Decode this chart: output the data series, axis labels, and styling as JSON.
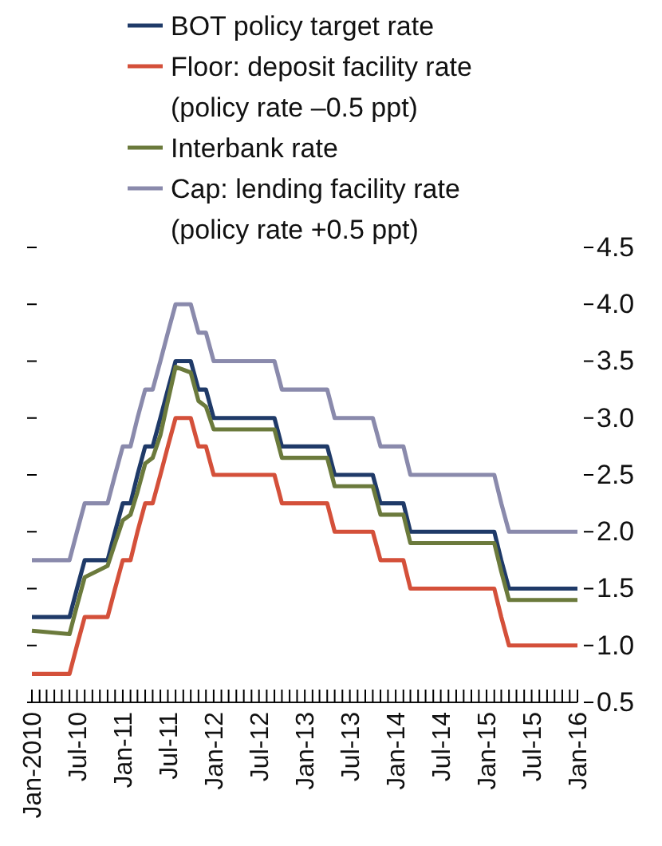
{
  "chart_data": {
    "type": "line",
    "x": [
      "2010-01",
      "2010-06",
      "2010-07",
      "2010-08",
      "2010-11",
      "2010-12",
      "2011-01",
      "2011-02",
      "2011-03",
      "2011-04",
      "2011-05",
      "2011-06",
      "2011-07",
      "2011-08",
      "2011-10",
      "2011-11",
      "2011-12",
      "2012-01",
      "2012-09",
      "2012-10",
      "2013-04",
      "2013-05",
      "2013-10",
      "2013-11",
      "2014-02",
      "2014-03",
      "2015-02",
      "2015-03",
      "2015-04",
      "2016-01"
    ],
    "series": [
      {
        "name": "BOT policy target rate",
        "color": "#1f3a68",
        "values": [
          1.25,
          1.25,
          1.5,
          1.75,
          1.75,
          2.0,
          2.25,
          2.25,
          2.5,
          2.75,
          2.75,
          3.0,
          3.25,
          3.5,
          3.5,
          3.25,
          3.25,
          3.0,
          3.0,
          2.75,
          2.75,
          2.5,
          2.5,
          2.25,
          2.25,
          2.0,
          2.0,
          1.75,
          1.5,
          1.5
        ]
      },
      {
        "name": "Floor: deposit facility rate\n(policy rate –0.5 ppt)",
        "color": "#d4503a",
        "values": [
          0.75,
          0.75,
          1.0,
          1.25,
          1.25,
          1.5,
          1.75,
          1.75,
          2.0,
          2.25,
          2.25,
          2.5,
          2.75,
          3.0,
          3.0,
          2.75,
          2.75,
          2.5,
          2.5,
          2.25,
          2.25,
          2.0,
          2.0,
          1.75,
          1.75,
          1.5,
          1.5,
          1.25,
          1.0,
          1.0
        ]
      },
      {
        "name": "Interbank rate",
        "color": "#6b7a3c",
        "values": [
          1.13,
          1.1,
          1.35,
          1.6,
          1.7,
          1.9,
          2.1,
          2.15,
          2.35,
          2.6,
          2.65,
          2.85,
          3.15,
          3.45,
          3.4,
          3.15,
          3.1,
          2.9,
          2.9,
          2.65,
          2.65,
          2.4,
          2.4,
          2.15,
          2.15,
          1.9,
          1.9,
          1.65,
          1.4,
          1.4
        ]
      },
      {
        "name": "Cap: lending facility rate\n(policy rate +0.5 ppt)",
        "color": "#8a8aac",
        "values": [
          1.75,
          1.75,
          2.0,
          2.25,
          2.25,
          2.5,
          2.75,
          2.75,
          3.0,
          3.25,
          3.25,
          3.5,
          3.75,
          4.0,
          4.0,
          3.75,
          3.75,
          3.5,
          3.5,
          3.25,
          3.25,
          3.0,
          3.0,
          2.75,
          2.75,
          2.5,
          2.5,
          2.25,
          2.0,
          2.0
        ]
      }
    ],
    "xlim": [
      "2010-01",
      "2016-01"
    ],
    "xticks": [
      {
        "value": "2010-01",
        "label": "Jan-2010"
      },
      {
        "value": "2010-02",
        "label": null
      },
      {
        "value": "2010-03",
        "label": null
      },
      {
        "value": "2010-04",
        "label": null
      },
      {
        "value": "2010-05",
        "label": null
      },
      {
        "value": "2010-06",
        "label": null
      },
      {
        "value": "2010-07",
        "label": "Jul-10"
      },
      {
        "value": "2010-08",
        "label": null
      },
      {
        "value": "2010-09",
        "label": null
      },
      {
        "value": "2010-10",
        "label": null
      },
      {
        "value": "2010-11",
        "label": null
      },
      {
        "value": "2010-12",
        "label": null
      },
      {
        "value": "2011-01",
        "label": "Jan-11"
      },
      {
        "value": "2011-02",
        "label": null
      },
      {
        "value": "2011-03",
        "label": null
      },
      {
        "value": "2011-04",
        "label": null
      },
      {
        "value": "2011-05",
        "label": null
      },
      {
        "value": "2011-06",
        "label": null
      },
      {
        "value": "2011-07",
        "label": "Jul-11"
      },
      {
        "value": "2011-08",
        "label": null
      },
      {
        "value": "2011-09",
        "label": null
      },
      {
        "value": "2011-10",
        "label": null
      },
      {
        "value": "2011-11",
        "label": null
      },
      {
        "value": "2011-12",
        "label": null
      },
      {
        "value": "2012-01",
        "label": "Jan-12"
      },
      {
        "value": "2012-02",
        "label": null
      },
      {
        "value": "2012-03",
        "label": null
      },
      {
        "value": "2012-04",
        "label": null
      },
      {
        "value": "2012-05",
        "label": null
      },
      {
        "value": "2012-06",
        "label": null
      },
      {
        "value": "2012-07",
        "label": "Jul-12"
      },
      {
        "value": "2012-08",
        "label": null
      },
      {
        "value": "2012-09",
        "label": null
      },
      {
        "value": "2012-10",
        "label": null
      },
      {
        "value": "2012-11",
        "label": null
      },
      {
        "value": "2012-12",
        "label": null
      },
      {
        "value": "2013-01",
        "label": "Jan-13"
      },
      {
        "value": "2013-02",
        "label": null
      },
      {
        "value": "2013-03",
        "label": null
      },
      {
        "value": "2013-04",
        "label": null
      },
      {
        "value": "2013-05",
        "label": null
      },
      {
        "value": "2013-06",
        "label": null
      },
      {
        "value": "2013-07",
        "label": "Jul-13"
      },
      {
        "value": "2013-08",
        "label": null
      },
      {
        "value": "2013-09",
        "label": null
      },
      {
        "value": "2013-10",
        "label": null
      },
      {
        "value": "2013-11",
        "label": null
      },
      {
        "value": "2013-12",
        "label": null
      },
      {
        "value": "2014-01",
        "label": "Jan-14"
      },
      {
        "value": "2014-02",
        "label": null
      },
      {
        "value": "2014-03",
        "label": null
      },
      {
        "value": "2014-04",
        "label": null
      },
      {
        "value": "2014-05",
        "label": null
      },
      {
        "value": "2014-06",
        "label": null
      },
      {
        "value": "2014-07",
        "label": "Jul-14"
      },
      {
        "value": "2014-08",
        "label": null
      },
      {
        "value": "2014-09",
        "label": null
      },
      {
        "value": "2014-10",
        "label": null
      },
      {
        "value": "2014-11",
        "label": null
      },
      {
        "value": "2014-12",
        "label": null
      },
      {
        "value": "2015-01",
        "label": "Jan-15"
      },
      {
        "value": "2015-02",
        "label": null
      },
      {
        "value": "2015-03",
        "label": null
      },
      {
        "value": "2015-04",
        "label": null
      },
      {
        "value": "2015-05",
        "label": null
      },
      {
        "value": "2015-06",
        "label": null
      },
      {
        "value": "2015-07",
        "label": "Jul-15"
      },
      {
        "value": "2015-08",
        "label": null
      },
      {
        "value": "2015-09",
        "label": null
      },
      {
        "value": "2015-10",
        "label": null
      },
      {
        "value": "2015-11",
        "label": null
      },
      {
        "value": "2015-12",
        "label": null
      },
      {
        "value": "2016-01",
        "label": "Jan-16"
      }
    ],
    "ylim": [
      0.5,
      4.5
    ],
    "yticks": [
      0.5,
      {
        "value": 1,
        "label": "1.0"
      },
      1.5,
      {
        "value": 2,
        "label": "2.0"
      },
      2.5,
      {
        "value": 3,
        "label": "3.0"
      },
      3.5,
      {
        "value": 4,
        "label": "4.0"
      },
      4.5
    ],
    "legend": "top",
    "grid": false,
    "marker": "none",
    "line_style": "solid"
  }
}
